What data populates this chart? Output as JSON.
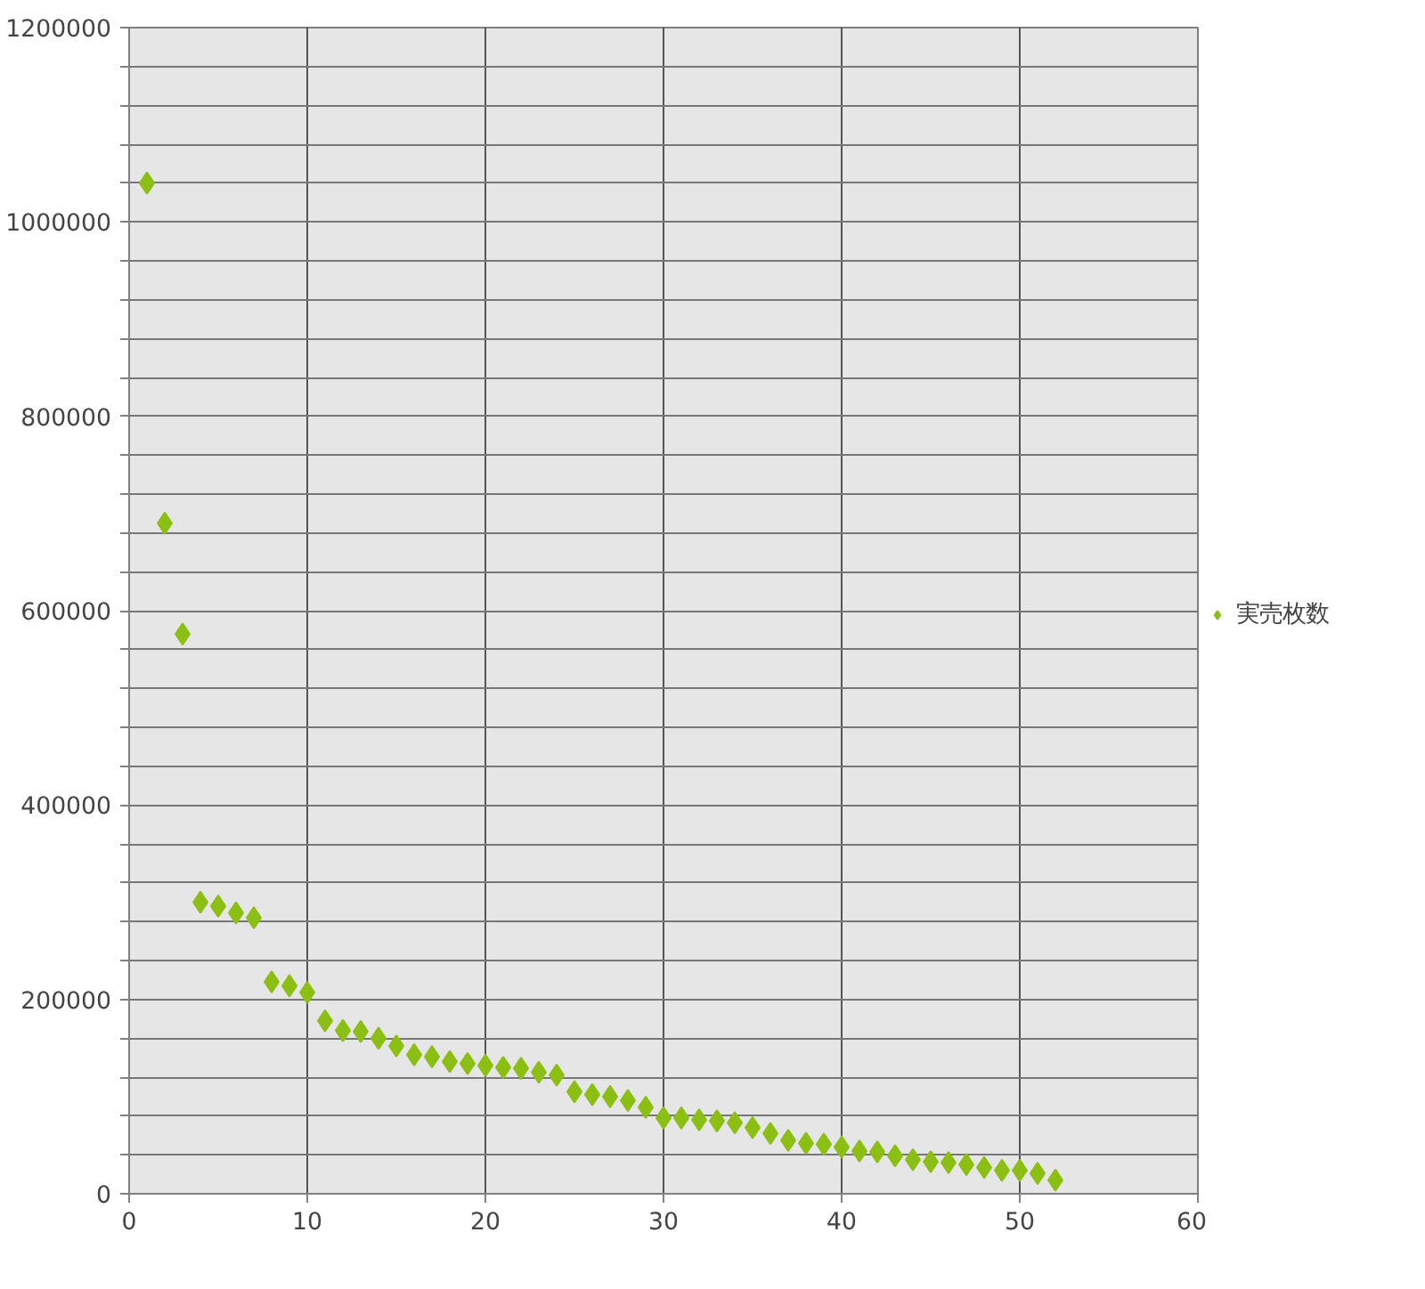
{
  "chart_data": {
    "type": "scatter",
    "x": [
      1,
      2,
      3,
      4,
      5,
      6,
      7,
      8,
      9,
      10,
      11,
      12,
      13,
      14,
      15,
      16,
      17,
      18,
      19,
      20,
      21,
      22,
      23,
      24,
      25,
      26,
      27,
      28,
      29,
      30,
      31,
      32,
      33,
      34,
      35,
      36,
      37,
      38,
      39,
      40,
      41,
      42,
      43,
      44,
      45,
      46,
      47,
      48,
      49,
      50,
      51,
      52
    ],
    "series": [
      {
        "name": "実売枚数",
        "color": "#8cbf14",
        "values": [
          1040000,
          690000,
          576000,
          300000,
          296000,
          289000,
          284000,
          218000,
          214000,
          207000,
          178000,
          168000,
          167000,
          160000,
          152000,
          143000,
          141000,
          136000,
          134000,
          132000,
          130000,
          129000,
          125000,
          122000,
          105000,
          102000,
          100000,
          96000,
          89000,
          78000,
          78000,
          76000,
          75000,
          73000,
          68000,
          62000,
          55000,
          52000,
          51000,
          48000,
          44000,
          43000,
          39000,
          35000,
          33000,
          32000,
          30000,
          27000,
          24000,
          24000,
          21000,
          14000
        ]
      }
    ],
    "xlim": [
      0,
      60
    ],
    "xticks": [
      0,
      10,
      20,
      30,
      40,
      50,
      60
    ],
    "ylim": [
      0,
      1200000
    ],
    "yticks": [
      0,
      {
        "value": 40000,
        "label": null
      },
      {
        "value": 80000,
        "label": null
      },
      {
        "value": 120000,
        "label": null
      },
      {
        "value": 160000,
        "label": null
      },
      200000,
      {
        "value": 240000,
        "label": null
      },
      {
        "value": 280000,
        "label": null
      },
      {
        "value": 320000,
        "label": null
      },
      {
        "value": 360000,
        "label": null
      },
      400000,
      {
        "value": 440000,
        "label": null
      },
      {
        "value": 480000,
        "label": null
      },
      {
        "value": 520000,
        "label": null
      },
      {
        "value": 560000,
        "label": null
      },
      600000,
      {
        "value": 640000,
        "label": null
      },
      {
        "value": 680000,
        "label": null
      },
      {
        "value": 720000,
        "label": null
      },
      {
        "value": 760000,
        "label": null
      },
      800000,
      {
        "value": 840000,
        "label": null
      },
      {
        "value": 880000,
        "label": null
      },
      {
        "value": 920000,
        "label": null
      },
      {
        "value": 960000,
        "label": null
      },
      1000000,
      {
        "value": 1040000,
        "label": null
      },
      {
        "value": 1080000,
        "label": null
      },
      {
        "value": 1120000,
        "label": null
      },
      {
        "value": 1160000,
        "label": null
      },
      1200000
    ],
    "grid": true,
    "legend": "right",
    "marker": "diamond"
  }
}
